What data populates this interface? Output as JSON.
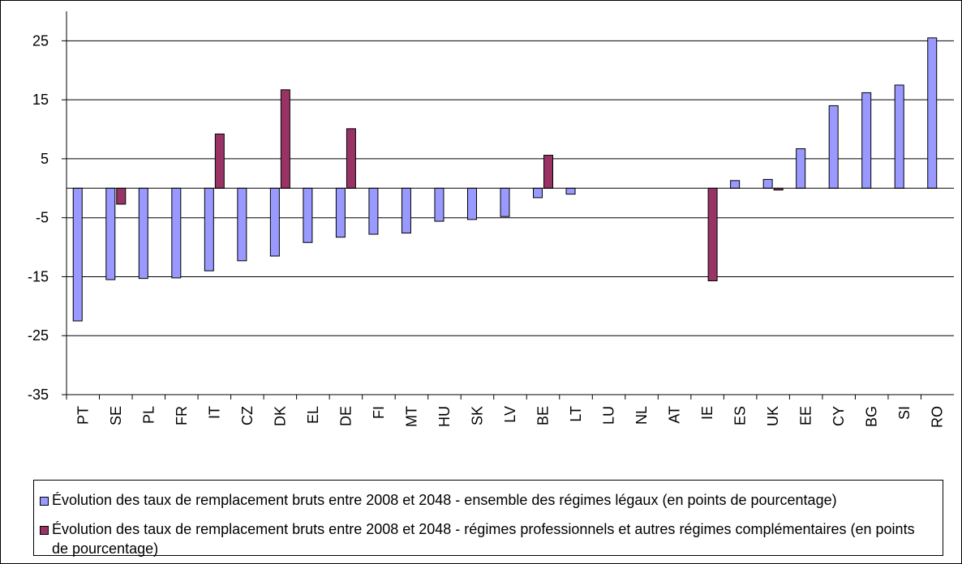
{
  "chart_data": {
    "type": "bar",
    "categories": [
      "PT",
      "SE",
      "PL",
      "FR",
      "IT",
      "CZ",
      "DK",
      "EL",
      "DE",
      "FI",
      "MT",
      "HU",
      "SK",
      "LV",
      "BE",
      "LT",
      "LU",
      "NL",
      "AT",
      "IE",
      "ES",
      "UK",
      "EE",
      "CY",
      "BG",
      "SI",
      "RO"
    ],
    "series": [
      {
        "name": "Évolution des taux de remplacement bruts entre 2008 et 2048 - ensemble des régimes légaux (en points de pourcentage)",
        "color": "#9999ff",
        "values": [
          -22.5,
          -15.5,
          -15.3,
          -15.2,
          -14,
          -12.3,
          -11.5,
          -9.2,
          -8.3,
          -7.8,
          -7.6,
          -5.6,
          -5.3,
          -4.8,
          -1.6,
          -1,
          0,
          0,
          0,
          0,
          1.3,
          1.5,
          6.7,
          14,
          16.2,
          17.5,
          25.5
        ]
      },
      {
        "name": "Évolution des taux de remplacement bruts entre 2008 et 2048 - régimes professionnels et autres régimes complémentaires (en points de pourcentage)",
        "color": "#993366",
        "values": [
          0,
          -2.7,
          0,
          0,
          9.2,
          0,
          16.7,
          0,
          10.1,
          0,
          0,
          0,
          0,
          0,
          5.6,
          0,
          0,
          0,
          0,
          -15.7,
          0,
          -0.3,
          0,
          0,
          0,
          0,
          0
        ]
      }
    ],
    "y_ticks": [
      "25",
      "15",
      "5",
      "-5",
      "-15",
      "-25",
      "-35"
    ],
    "ylim": [
      -35,
      25
    ],
    "grid": true,
    "legend_position": "bottom"
  }
}
